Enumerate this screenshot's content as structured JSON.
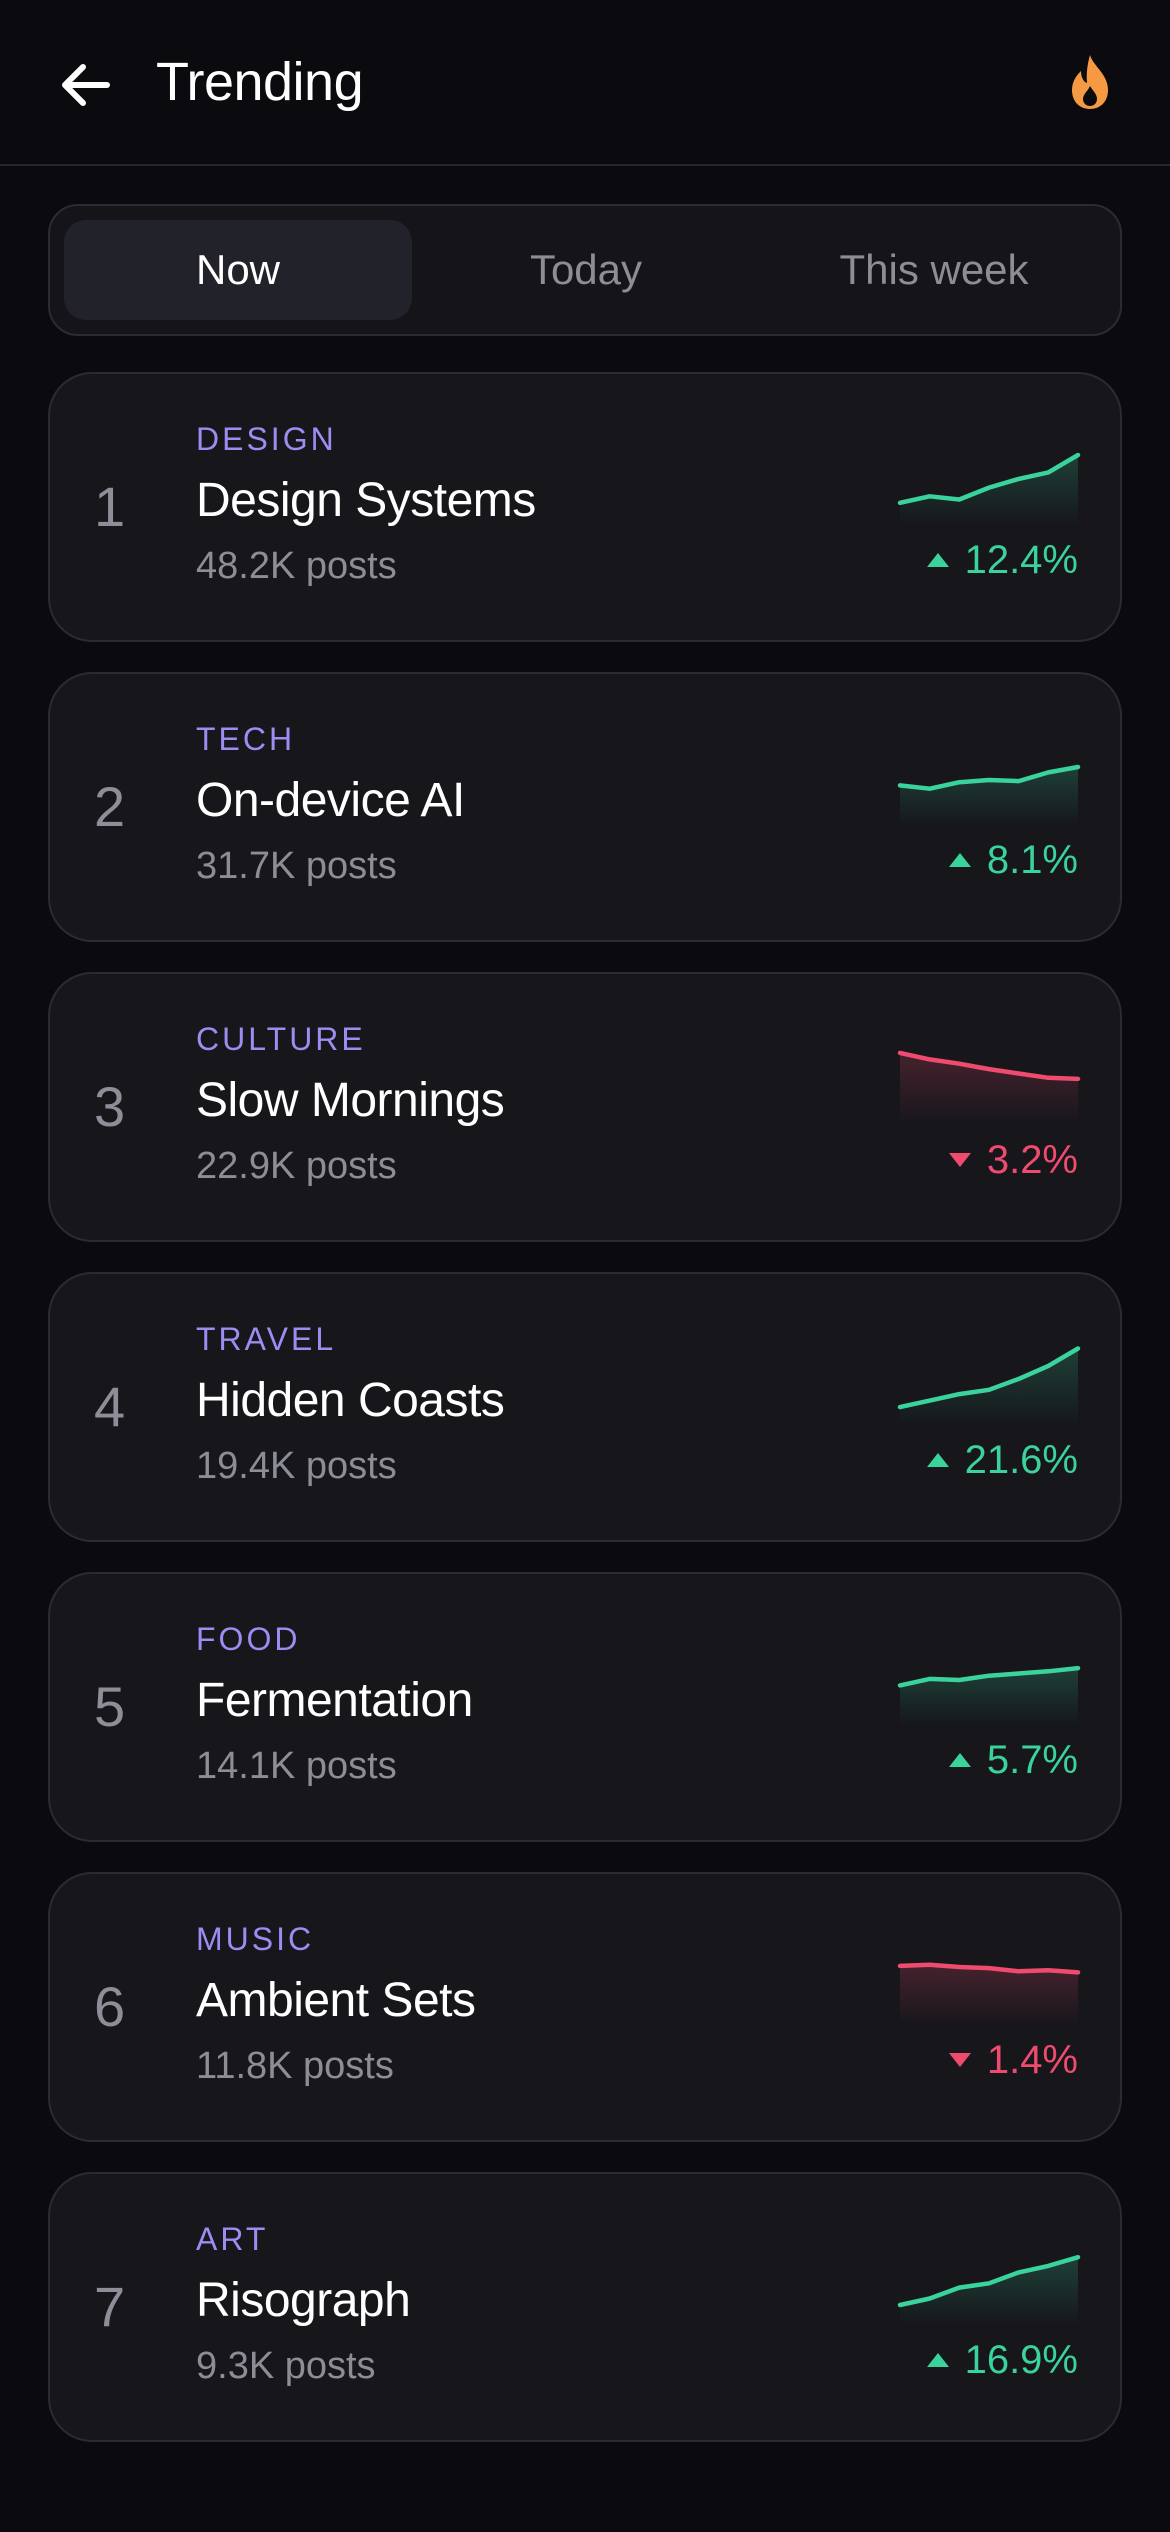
{
  "header": {
    "title": "Trending",
    "back_icon": "arrow-left-icon",
    "action_icon": "flame-icon",
    "action_color": "#f59a42"
  },
  "tabs": [
    {
      "label": "Now",
      "active": true
    },
    {
      "label": "Today",
      "active": false
    },
    {
      "label": "This week",
      "active": false
    }
  ],
  "colors": {
    "up": "#3ad39b",
    "down": "#ef4b6f",
    "category": "#9d8cf2"
  },
  "trends": [
    {
      "rank": "1",
      "category": "DESIGN",
      "title": "Design Systems",
      "posts": "48.2K posts",
      "change": "12.4%",
      "direction": "up",
      "spark": [
        14,
        20,
        17,
        28,
        36,
        42,
        58
      ]
    },
    {
      "rank": "2",
      "category": "TECH",
      "title": "On-device AI",
      "posts": "31.7K posts",
      "change": "8.1%",
      "direction": "up",
      "spark": [
        30,
        27,
        33,
        35,
        34,
        42,
        47
      ]
    },
    {
      "rank": "3",
      "category": "CULTURE",
      "title": "Slow Mornings",
      "posts": "22.9K posts",
      "change": "3.2%",
      "direction": "down",
      "spark": [
        60,
        54,
        50,
        45,
        41,
        37,
        36
      ]
    },
    {
      "rank": "4",
      "category": "TRAVEL",
      "title": "Hidden Coasts",
      "posts": "19.4K posts",
      "change": "21.6%",
      "direction": "up",
      "spark": [
        10,
        16,
        22,
        26,
        36,
        48,
        64
      ]
    },
    {
      "rank": "5",
      "category": "FOOD",
      "title": "Fermentation",
      "posts": "14.1K posts",
      "change": "5.7%",
      "direction": "up",
      "spark": [
        30,
        36,
        35,
        39,
        41,
        43,
        46
      ]
    },
    {
      "rank": "6",
      "category": "MUSIC",
      "title": "Ambient Sets",
      "posts": "11.8K posts",
      "change": "1.4%",
      "direction": "down",
      "spark": [
        48,
        49,
        47,
        46,
        43,
        44,
        42
      ]
    },
    {
      "rank": "7",
      "category": "ART",
      "title": "Risograph",
      "posts": "9.3K posts",
      "change": "16.9%",
      "direction": "up",
      "spark": [
        12,
        18,
        28,
        32,
        42,
        48,
        56
      ]
    }
  ]
}
